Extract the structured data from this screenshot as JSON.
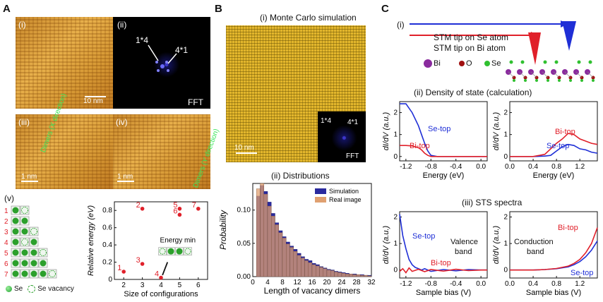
{
  "panel_a": {
    "label": "A",
    "i": "(i)",
    "ii": "(ii)",
    "iii": "(iii)",
    "iv": "(iv)",
    "v": "(v)",
    "scale_i": "10 nm",
    "fft_label": "FFT",
    "fft_1x4": "1*4",
    "fft_4x1": "4*1",
    "dimers_x": "Dimers (X direction)",
    "dimers_y": "Dimers (Y direction)",
    "scale_iii": "1 nm",
    "scale_iv": "1 nm",
    "config_rows": [
      "1",
      "2",
      "3",
      "4",
      "5",
      "6",
      "7"
    ],
    "legend_se": "Se",
    "legend_vac": "Se vacancy",
    "energy_min": "Energy min"
  },
  "panel_b": {
    "label": "B",
    "title_i": "(i) Monte Carlo simulation",
    "scale": "10 nm",
    "fft_label": "FFT",
    "fft_1x4": "1*4",
    "fft_4x1": "4*1",
    "title_ii": "(ii) Distributions"
  },
  "panel_c": {
    "label": "C",
    "i": "(i)",
    "tip_se": "STM tip on Se atom",
    "tip_bi": "STM tip on Bi atom",
    "atom_bi": "Bi",
    "atom_o": "O",
    "atom_se": "Se",
    "title_ii": "(ii) Density of state (calculation)",
    "title_iii": "(iii) STS spectra",
    "se_top": "Se-top",
    "bi_top": "Bi-top",
    "valence": "Valence",
    "band": "band",
    "conduction": "Conduction"
  },
  "colors": {
    "se": "#1f2fd6",
    "bi": "#e0202a",
    "sim": "#2a2a9e",
    "real": "#e0a070",
    "scatter": "#e0202a"
  },
  "chart_data": [
    {
      "type": "scatter",
      "xlabel": "Size of configurations",
      "ylabel": "Relative energy (eV)",
      "xlim": [
        1.5,
        6.5
      ],
      "ylim": [
        0,
        0.9
      ],
      "xticks": [
        2,
        3,
        4,
        5,
        6
      ],
      "yticks": [
        0,
        0.2,
        0.4,
        0.6,
        0.8
      ],
      "points": [
        {
          "label": "1",
          "x": 2,
          "y": 0.09
        },
        {
          "label": "2",
          "x": 3,
          "y": 0.82
        },
        {
          "label": "3",
          "x": 3,
          "y": 0.18
        },
        {
          "label": "4",
          "x": 4,
          "y": 0.02
        },
        {
          "label": "5",
          "x": 5,
          "y": 0.82
        },
        {
          "label": "6",
          "x": 5,
          "y": 0.75
        },
        {
          "label": "7",
          "x": 6,
          "y": 0.82
        }
      ]
    },
    {
      "type": "bar",
      "xlabel": "Length of vacancy dimers",
      "ylabel": "Probability",
      "xlim": [
        0,
        32
      ],
      "ylim": [
        0,
        0.14
      ],
      "xticks": [
        0,
        4,
        8,
        12,
        16,
        20,
        24,
        28,
        32
      ],
      "yticks": [
        0.0,
        0.05,
        0.1
      ],
      "legend": "top-right",
      "bin_starts": [
        1,
        2,
        3,
        4,
        5,
        6,
        7,
        8,
        9,
        10,
        11,
        12,
        13,
        14,
        15,
        16,
        17,
        18,
        19,
        20,
        21,
        22,
        23,
        24,
        25,
        26,
        27,
        28,
        29,
        30,
        31
      ],
      "series": [
        {
          "name": "Simulation",
          "values": [
            0.121,
            0.137,
            0.128,
            0.112,
            0.095,
            0.081,
            0.069,
            0.06,
            0.052,
            0.046,
            0.041,
            0.035,
            0.03,
            0.026,
            0.024,
            0.02,
            0.018,
            0.015,
            0.013,
            0.011,
            0.01,
            0.008,
            0.007,
            0.006,
            0.005,
            0.004,
            0.004,
            0.003,
            0.003,
            0.002,
            0.002
          ]
        },
        {
          "name": "Real image",
          "values": [
            0.132,
            0.14,
            0.124,
            0.106,
            0.091,
            0.078,
            0.066,
            0.058,
            0.049,
            0.044,
            0.038,
            0.032,
            0.028,
            0.024,
            0.021,
            0.018,
            0.016,
            0.014,
            0.012,
            0.01,
            0.009,
            0.007,
            0.006,
            0.005,
            0.004,
            0.004,
            0.003,
            0.003,
            0.002,
            0.002,
            0.001
          ]
        }
      ]
    },
    {
      "type": "line",
      "xlabel": "Energy (eV)",
      "ylabel": "dI/dV (a.u.)",
      "xlim": [
        -1.3,
        0.1
      ],
      "ylim": [
        -0.2,
        2.5
      ],
      "xticks": [
        -1.2,
        -0.8,
        -0.4,
        0.0
      ],
      "yticks": [
        0,
        1,
        2
      ],
      "series": [
        {
          "name": "Se-top",
          "x": [
            -1.3,
            -1.2,
            -1.1,
            -1.0,
            -0.95,
            -0.9,
            -0.85,
            -0.8,
            -0.7,
            -0.5,
            -0.2,
            0.1
          ],
          "y": [
            2.4,
            2.4,
            2.0,
            1.4,
            1.0,
            0.6,
            0.25,
            0.05,
            0.0,
            0.0,
            0.0,
            0.0
          ]
        },
        {
          "name": "Bi-top",
          "x": [
            -1.3,
            -1.2,
            -1.1,
            -1.0,
            -0.95,
            -0.9,
            -0.85,
            -0.8,
            -0.7,
            -0.5,
            -0.2,
            0.1
          ],
          "y": [
            0.5,
            0.5,
            0.48,
            0.4,
            0.3,
            0.15,
            0.05,
            0.0,
            0.0,
            0.0,
            0.0,
            0.0
          ]
        }
      ]
    },
    {
      "type": "line",
      "xlabel": "Energy (eV)",
      "ylabel": "dI/dV (a.u.)",
      "xlim": [
        0.0,
        1.5
      ],
      "ylim": [
        -0.2,
        2.5
      ],
      "xticks": [
        0.0,
        0.4,
        0.8,
        1.2
      ],
      "yticks": [
        0,
        1,
        2
      ],
      "series": [
        {
          "name": "Se-top",
          "x": [
            0,
            0.4,
            0.6,
            0.7,
            0.8,
            0.9,
            1.0,
            1.1,
            1.2,
            1.3,
            1.4,
            1.5
          ],
          "y": [
            0,
            0,
            0.02,
            0.05,
            0.25,
            0.45,
            0.55,
            0.5,
            0.35,
            0.3,
            0.2,
            0.15
          ]
        },
        {
          "name": "Bi-top",
          "x": [
            0,
            0.4,
            0.6,
            0.7,
            0.8,
            0.9,
            1.0,
            1.1,
            1.2,
            1.3,
            1.4,
            1.5
          ],
          "y": [
            0,
            0,
            0.1,
            0.35,
            0.6,
            0.8,
            1.05,
            1.0,
            0.8,
            0.7,
            0.6,
            0.55
          ]
        }
      ]
    },
    {
      "type": "line",
      "xlabel": "Sample bias (V)",
      "ylabel": "dI/dV (a.u.)",
      "xlim": [
        -1.3,
        0.1
      ],
      "ylim": [
        -0.3,
        2.2
      ],
      "xticks": [
        -1.2,
        -0.8,
        -0.4,
        0.0
      ],
      "yticks": [
        0,
        1,
        2
      ],
      "series": [
        {
          "name": "Se-top",
          "x": [
            -1.3,
            -1.25,
            -1.2,
            -1.15,
            -1.1,
            -1.05,
            -1.0,
            -0.95,
            -0.9,
            -0.8,
            -0.6,
            -0.4,
            -0.2,
            0.0,
            0.1
          ],
          "y": [
            2.1,
            1.3,
            0.8,
            0.4,
            0.2,
            0.1,
            0.05,
            0.0,
            0.05,
            -0.05,
            0.02,
            -0.03,
            0.02,
            0.0,
            0.0
          ]
        },
        {
          "name": "Bi-top",
          "x": [
            -1.3,
            -1.25,
            -1.2,
            -1.15,
            -1.1,
            -1.0,
            -0.9,
            -0.8,
            -0.6,
            -0.4,
            -0.2,
            0.0,
            0.1
          ],
          "y": [
            -0.05,
            0.05,
            -0.1,
            0.08,
            -0.05,
            0.03,
            -0.06,
            0.02,
            -0.04,
            0.03,
            -0.02,
            0.0,
            0.0
          ]
        }
      ]
    },
    {
      "type": "line",
      "xlabel": "Sample bias (V)",
      "ylabel": "dI/dV (a.u.)",
      "xlim": [
        0.0,
        1.5
      ],
      "ylim": [
        -0.3,
        2.2
      ],
      "xticks": [
        0.0,
        0.4,
        0.8,
        1.2
      ],
      "yticks": [
        0,
        1,
        2
      ],
      "series": [
        {
          "name": "Se-top",
          "x": [
            0,
            0.2,
            0.4,
            0.6,
            0.8,
            1.0,
            1.1,
            1.2,
            1.3,
            1.4,
            1.5
          ],
          "y": [
            0,
            0,
            0,
            0.02,
            0.05,
            0.12,
            0.2,
            0.32,
            0.5,
            0.75,
            1.1
          ]
        },
        {
          "name": "Bi-top",
          "x": [
            0,
            0.2,
            0.4,
            0.6,
            0.8,
            1.0,
            1.1,
            1.2,
            1.3,
            1.4,
            1.5
          ],
          "y": [
            0,
            0,
            0,
            0.02,
            0.06,
            0.15,
            0.25,
            0.4,
            0.65,
            1.0,
            1.6
          ]
        }
      ]
    }
  ]
}
